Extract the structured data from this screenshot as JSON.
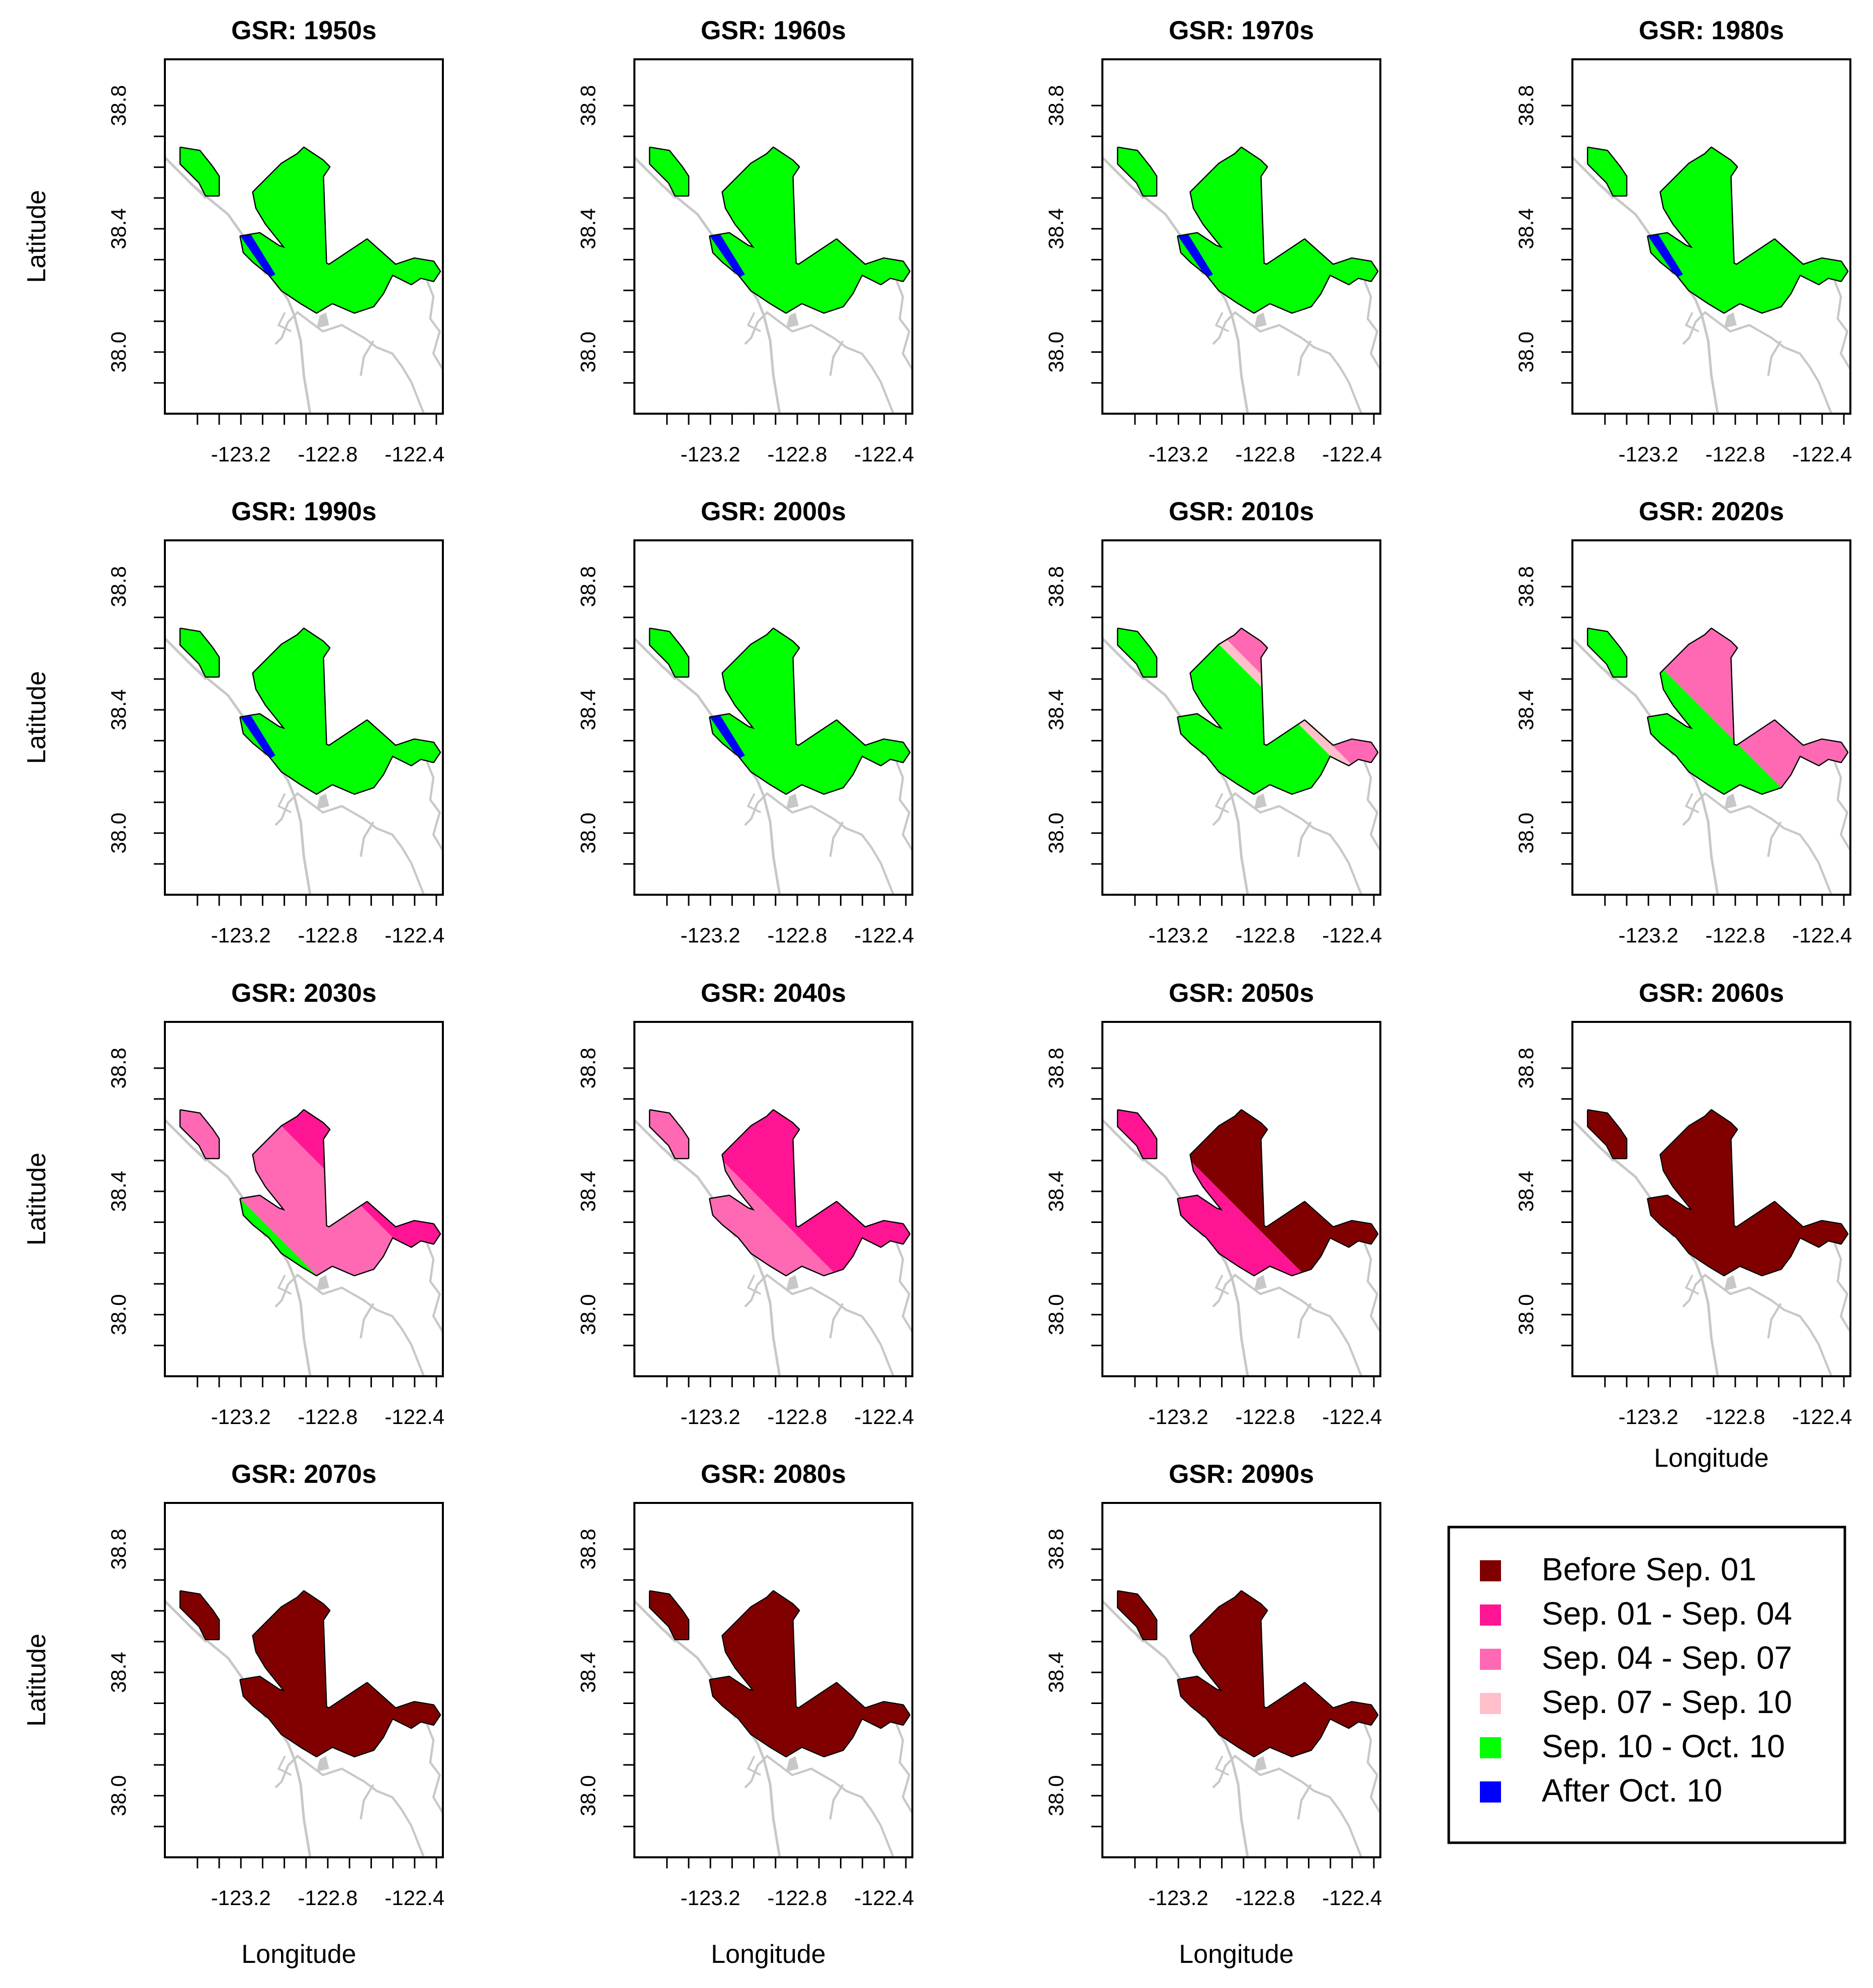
{
  "figure": {
    "y_axis_label": "Latitude",
    "x_axis_label": "Longitude",
    "x_ticks": [
      "-123.2",
      "-122.8",
      "-122.4"
    ],
    "y_ticks": [
      "38.8",
      "38.4",
      "38.0"
    ]
  },
  "legend": {
    "items": [
      {
        "label": "Before Sep. 01",
        "color": "#800000"
      },
      {
        "label": "Sep. 01 - Sep. 04",
        "color": "#ff1493"
      },
      {
        "label": "Sep. 04 - Sep. 07",
        "color": "#ff69b4"
      },
      {
        "label": "Sep. 07 - Sep. 10",
        "color": "#ffc0cb"
      },
      {
        "label": "Sep. 10 - Oct. 10",
        "color": "#00ff00"
      },
      {
        "label": "After Oct. 10",
        "color": "#0000ff"
      }
    ]
  },
  "chart_data": {
    "type": "map",
    "variable": "GSR",
    "x_range": [
      -123.55,
      -122.27
    ],
    "y_range": [
      37.8,
      38.95
    ],
    "panels": [
      {
        "title": "GSR: 1950s",
        "decade": "1950s",
        "late": 0.0,
        "mid": 0.0,
        "early": 0.08,
        "green_until": 0.94,
        "blue": true
      },
      {
        "title": "GSR: 1960s",
        "decade": "1960s",
        "late": 0.0,
        "mid": 0.0,
        "early": 0.1,
        "green_until": 0.92,
        "blue": true
      },
      {
        "title": "GSR: 1970s",
        "decade": "1970s",
        "late": 0.0,
        "mid": 0.0,
        "early": 0.1,
        "green_until": 0.9,
        "blue": true
      },
      {
        "title": "GSR: 1980s",
        "decade": "1980s",
        "late": 0.0,
        "mid": 0.03,
        "early": 0.14,
        "green_until": 0.84,
        "blue": true
      },
      {
        "title": "GSR: 1990s",
        "decade": "1990s",
        "late": 0.0,
        "mid": 0.08,
        "early": 0.2,
        "green_until": 0.78,
        "blue": true
      },
      {
        "title": "GSR: 2000s",
        "decade": "2000s",
        "late": 0.0,
        "mid": 0.12,
        "early": 0.26,
        "green_until": 0.7,
        "blue": true
      },
      {
        "title": "GSR: 2010s",
        "decade": "2010s",
        "late": 0.05,
        "mid": 0.22,
        "early": 0.4,
        "green_until": 0.58,
        "blue": false
      },
      {
        "title": "GSR: 2020s",
        "decade": "2020s",
        "late": 0.12,
        "mid": 0.3,
        "early": 0.5,
        "green_until": 0.5,
        "blue": false
      },
      {
        "title": "GSR: 2030s",
        "decade": "2030s",
        "late": 0.22,
        "mid": 0.42,
        "early": 0.6,
        "green_until": 0.4,
        "blue": false
      },
      {
        "title": "GSR: 2040s",
        "decade": "2040s",
        "late": 0.32,
        "mid": 0.52,
        "early": 0.68,
        "green_until": 0.32,
        "blue": false
      },
      {
        "title": "GSR: 2050s",
        "decade": "2050s",
        "late": 0.52,
        "mid": 0.7,
        "early": 0.82,
        "green_until": 0.2,
        "blue": false
      },
      {
        "title": "GSR: 2060s",
        "decade": "2060s",
        "late": 0.7,
        "mid": 0.82,
        "early": 0.9,
        "green_until": 0.12,
        "blue": false
      },
      {
        "title": "GSR: 2070s",
        "decade": "2070s",
        "late": 0.82,
        "mid": 0.9,
        "early": 0.95,
        "green_until": 0.06,
        "blue": false
      },
      {
        "title": "GSR: 2080s",
        "decade": "2080s",
        "late": 0.88,
        "mid": 0.94,
        "early": 0.97,
        "green_until": 0.03,
        "blue": false
      },
      {
        "title": "GSR: 2090s",
        "decade": "2090s",
        "late": 0.92,
        "mid": 0.96,
        "early": 0.98,
        "green_until": 0.02,
        "blue": false
      }
    ]
  }
}
